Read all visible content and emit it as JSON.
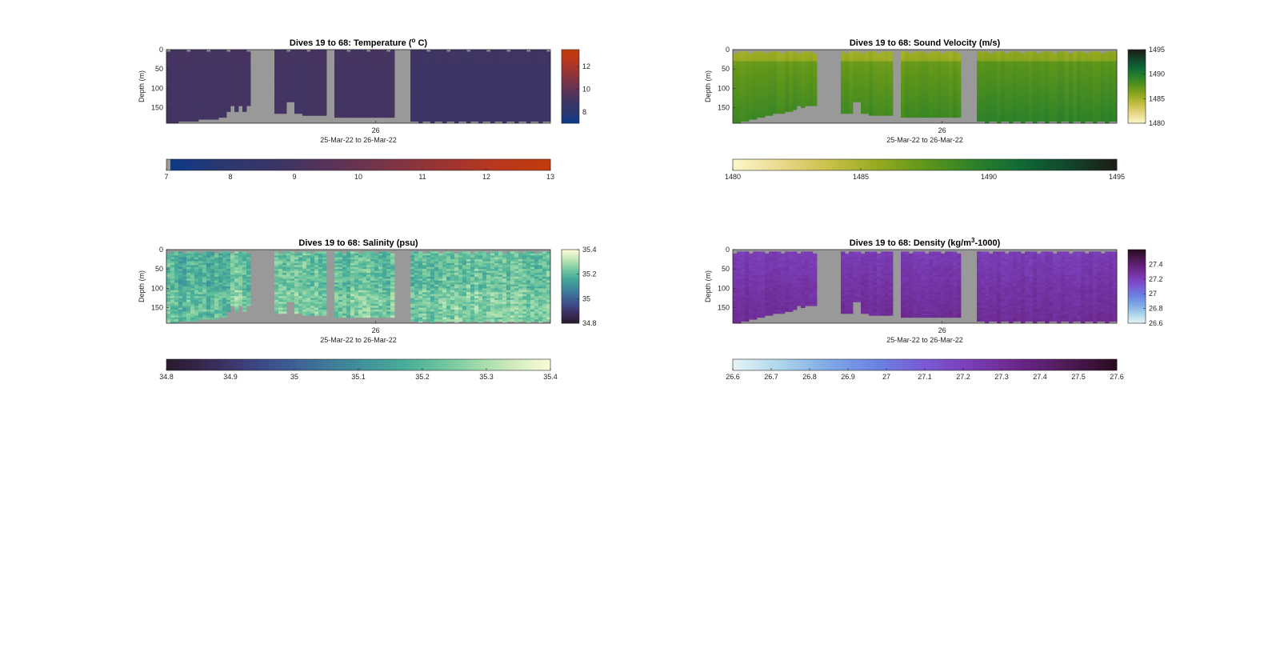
{
  "figure": {
    "background": "#ffffff",
    "missing_color": "#999999"
  },
  "chart_data": [
    {
      "type": "heatmap",
      "id": "temperature",
      "title_main": "Dives 19 to 68: Temperature (",
      "title_sup": "o",
      "title_tail": " C)",
      "ylabel": "Depth (m)",
      "xtick_label": "26",
      "xlabel": "25-Mar-22 to 26-Mar-22",
      "depth_range": [
        0,
        190
      ],
      "depth_ticks": [
        "0",
        "50",
        "100",
        "150"
      ],
      "side_colorbar": {
        "range": [
          7,
          13.5
        ],
        "ticks": [
          "8",
          "10",
          "12"
        ],
        "tick_values": [
          8,
          10,
          12
        ]
      },
      "bottom_colorbar": {
        "range": [
          7,
          13
        ],
        "ticks": [
          "7",
          "8",
          "9",
          "10",
          "11",
          "12",
          "13"
        ],
        "tick_values": [
          7,
          8,
          9,
          10,
          11,
          12,
          13
        ]
      },
      "colormap": [
        "#0a3a8a",
        "#2b3870",
        "#3b3566",
        "#5a3358",
        "#7a3448",
        "#9a3433",
        "#b8381f",
        "#c23b0c"
      ],
      "pattern": "temp",
      "base_value": 9.1,
      "variation": 0.15
    },
    {
      "type": "heatmap",
      "id": "sound-velocity",
      "title_main": "Dives 19 to 68: Sound Velocity (m/s)",
      "title_sup": "",
      "title_tail": "",
      "ylabel": "Depth (m)",
      "xtick_label": "26",
      "xlabel": "25-Mar-22 to 26-Mar-22",
      "depth_range": [
        0,
        190
      ],
      "depth_ticks": [
        "0",
        "50",
        "100",
        "150"
      ],
      "side_colorbar": {
        "range": [
          1480,
          1495
        ],
        "ticks": [
          "1480",
          "1485",
          "1490",
          "1495"
        ],
        "tick_values": [
          1480,
          1485,
          1490,
          1495
        ]
      },
      "bottom_colorbar": {
        "range": [
          1480,
          1495
        ],
        "ticks": [
          "1480",
          "1485",
          "1490",
          "1495"
        ],
        "tick_values": [
          1480,
          1485,
          1490,
          1495
        ]
      },
      "colormap": [
        "#fbf6c8",
        "#e8d88a",
        "#c8c048",
        "#96aa20",
        "#5f961a",
        "#2f8228",
        "#106a36",
        "#11472c",
        "#1c1e16"
      ],
      "pattern": "svel",
      "base_value": 1487.2,
      "variation": 0.6
    },
    {
      "type": "heatmap",
      "id": "salinity",
      "title_main": "Dives 19 to 68: Salinity (psu)",
      "title_sup": "",
      "title_tail": "",
      "ylabel": "Depth (m)",
      "xtick_label": "26",
      "xlabel": "25-Mar-22 to 26-Mar-22",
      "depth_range": [
        0,
        190
      ],
      "depth_ticks": [
        "0",
        "50",
        "100",
        "150"
      ],
      "side_colorbar": {
        "range": [
          34.8,
          35.4
        ],
        "ticks": [
          "34.8",
          "35",
          "35.2",
          "35.4"
        ],
        "tick_values": [
          34.8,
          35.0,
          35.2,
          35.4
        ]
      },
      "bottom_colorbar": {
        "range": [
          34.8,
          35.4
        ],
        "ticks": [
          "34.8",
          "34.9",
          "35",
          "35.1",
          "35.2",
          "35.3",
          "35.4"
        ],
        "tick_values": [
          34.8,
          34.9,
          35.0,
          35.1,
          35.2,
          35.3,
          35.4
        ]
      },
      "colormap": [
        "#2a1a2c",
        "#3b2d5c",
        "#3d4a8a",
        "#3f6c98",
        "#3f8f9c",
        "#48ae98",
        "#7ccca0",
        "#bfe6b6",
        "#fbfbd8"
      ],
      "pattern": "sal",
      "base_value": 35.22,
      "variation": 0.06
    },
    {
      "type": "heatmap",
      "id": "density",
      "title_main": "Dives 19 to 68: Density (kg/m",
      "title_sup": "3",
      "title_tail": "-1000)",
      "ylabel": "Depth (m)",
      "xtick_label": "26",
      "xlabel": "25-Mar-22 to 26-Mar-22",
      "depth_range": [
        0,
        190
      ],
      "depth_ticks": [
        "0",
        "50",
        "100",
        "150"
      ],
      "side_colorbar": {
        "range": [
          26.6,
          27.6
        ],
        "ticks": [
          "26.6",
          "26.8",
          "27",
          "27.2",
          "27.4"
        ],
        "tick_values": [
          26.6,
          26.8,
          27.0,
          27.2,
          27.4
        ]
      },
      "bottom_colorbar": {
        "range": [
          26.6,
          27.6
        ],
        "ticks": [
          "26.6",
          "26.7",
          "26.8",
          "26.9",
          "27",
          "27.1",
          "27.2",
          "27.3",
          "27.4",
          "27.5",
          "27.6"
        ],
        "tick_values": [
          26.6,
          26.7,
          26.8,
          26.9,
          27.0,
          27.1,
          27.2,
          27.3,
          27.4,
          27.5,
          27.6
        ]
      },
      "colormap": [
        "#e6f3f6",
        "#a9d4ea",
        "#7fa8e6",
        "#6a82e2",
        "#7a5ad6",
        "#7a3cb4",
        "#6a2688",
        "#4f1a58",
        "#2a0c22"
      ],
      "pattern": "dens",
      "base_value": 27.22,
      "variation": 0.04
    }
  ]
}
